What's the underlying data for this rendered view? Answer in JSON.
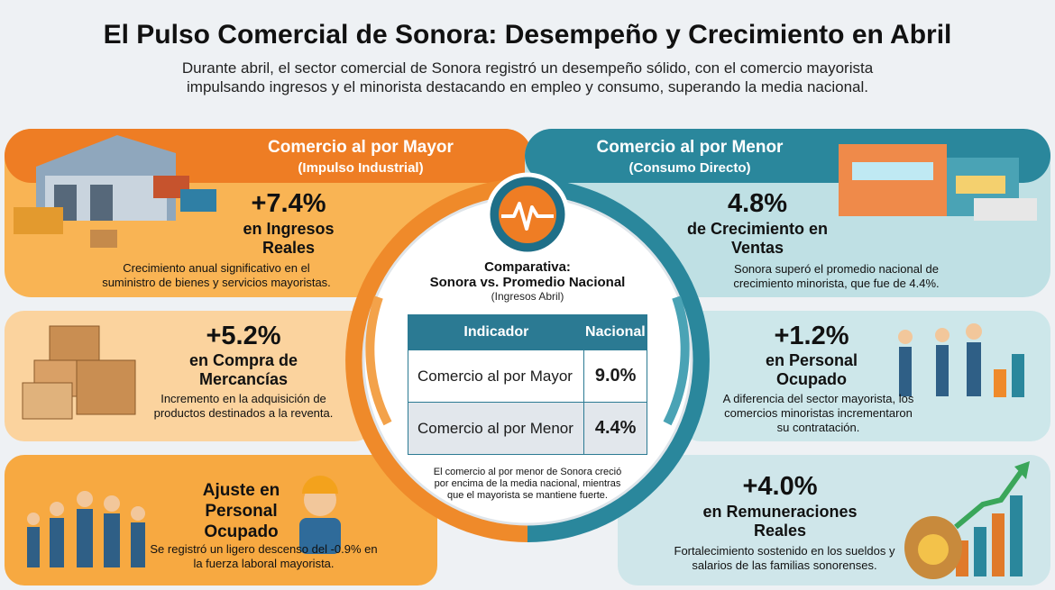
{
  "header": {
    "title": "El Pulso Comercial de Sonora: Desempeño y Crecimiento en Abril",
    "subtitle": "Durante abril, el sector comercial de Sonora registró un desempeño sólido, con el comercio mayorista impulsando ingresos y el minorista destacando en empleo y consumo, superando la media nacional."
  },
  "wholesale": {
    "title": "Comercio al por Mayor",
    "subtitle": "(Impulso Industrial)",
    "cards": [
      {
        "value": "+7.4%",
        "label": "en Ingresos Reales",
        "description": "Crecimiento anual significativo en el suministro de bienes y servicios mayoristas."
      },
      {
        "value": "+5.2%",
        "label": "en Compra de Mercancías",
        "description": "Incremento en la adquisición de productos destinados a la reventa."
      },
      {
        "label": "Ajuste en Personal Ocupado",
        "description": "Se registró un ligero descenso del -0.9% en la fuerza laboral mayorista."
      }
    ]
  },
  "retail": {
    "title": "Comercio al por Menor",
    "subtitle": "(Consumo Directo)",
    "cards": [
      {
        "value": "4.8%",
        "label": "de Crecimiento en Ventas",
        "description": "Sonora superó el promedio nacional de crecimiento minorista, que fue de 4.4%."
      },
      {
        "value": "+1.2%",
        "label": "en Personal Ocupado",
        "description": "A diferencia del sector mayorista, los comercios minoristas incrementaron su contratación."
      },
      {
        "value": "+4.0%",
        "label": "en Remuneraciones Reales",
        "description": "Fortalecimiento sostenido en los sueldos y salarios de las familias sonorenses."
      }
    ]
  },
  "comparison": {
    "title": "Comparativa:",
    "subtitle": "Sonora vs. Promedio Nacional",
    "note": "(Ingresos Abril)",
    "table": {
      "header": [
        "Indicador",
        "Nacional"
      ],
      "rows": [
        [
          "Comercio al por Mayor",
          "9.0%"
        ],
        [
          "Comercio al por Menor",
          "4.4%"
        ]
      ]
    },
    "footnote": "El comercio al por menor de Sonora creció por encima de la media nacional, mientras que el mayorista se mantiene fuerte."
  }
}
